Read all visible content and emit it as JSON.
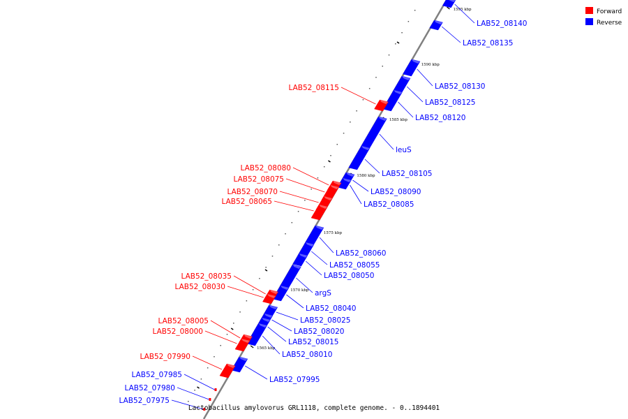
{
  "title": "Lactobacillus amylovorus GRL1118, complete genome. - 0..1894401",
  "legend": [
    {
      "label": "Forward",
      "color": "#ff0000"
    },
    {
      "label": "Reverse",
      "color": "#0000ff"
    }
  ],
  "colors": {
    "forward": "#ff0000",
    "reverse": "#0000ff",
    "backbone": "#808080"
  },
  "scale_labels": [
    "1595 kbp",
    "1590 kbp",
    "1585 kbp",
    "1580 kbp",
    "1575 kbp",
    "1570 kbp",
    "1565 kbp"
  ],
  "forward_genes": [
    "LAB52_08115",
    "LAB52_08080",
    "LAB52_08075",
    "LAB52_08070",
    "LAB52_08065",
    "LAB52_08035",
    "LAB52_08030",
    "LAB52_08005",
    "LAB52_08000",
    "LAB52_07990",
    "LAB52_07985",
    "LAB52_07980",
    "LAB52_07975"
  ],
  "reverse_genes": [
    "LAB52_08140",
    "LAB52_08135",
    "LAB52_08130",
    "LAB52_08125",
    "LAB52_08120",
    "leuS",
    "LAB52_08105",
    "LAB52_08090",
    "LAB52_08085",
    "LAB52_08060",
    "LAB52_08055",
    "LAB52_08050",
    "argS",
    "LAB52_08040",
    "LAB52_08025",
    "LAB52_08020",
    "LAB52_08015",
    "LAB52_08010",
    "LAB52_07995"
  ]
}
